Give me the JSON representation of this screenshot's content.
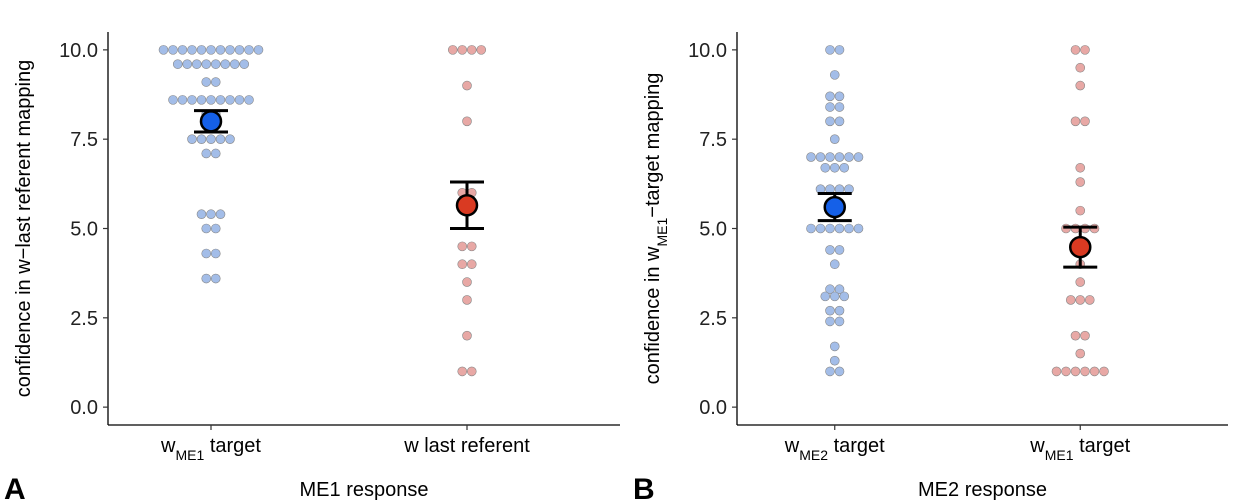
{
  "chart_data": [
    {
      "type": "dotplot",
      "panel": "A",
      "xlabel": "ME1 response",
      "ylabel": [
        "confidence in w−last referent mapping"
      ],
      "categories": [
        [
          "w",
          "ME1",
          " target"
        ],
        [
          "w last referent"
        ]
      ],
      "values": [
        [
          10,
          10,
          10,
          10,
          10,
          10,
          10,
          10,
          10,
          10,
          10,
          9.6,
          9.6,
          9.6,
          9.6,
          9.6,
          9.6,
          9.6,
          9.6,
          9.1,
          9.1,
          8.6,
          8.6,
          8.6,
          8.6,
          8.6,
          8.6,
          8.6,
          8.6,
          8.6,
          8.2,
          8.2,
          7.5,
          7.5,
          7.5,
          7.5,
          7.5,
          7.1,
          7.1,
          5.4,
          5.4,
          5.4,
          5.0,
          5.0,
          4.3,
          4.3,
          3.6,
          3.6
        ],
        [
          10,
          10,
          10,
          10,
          9,
          8,
          6,
          6,
          4.5,
          4.5,
          4,
          4,
          3.5,
          3,
          2,
          1,
          1
        ]
      ],
      "means": [
        8.0,
        5.65
      ],
      "errors": [
        0.3,
        0.65
      ],
      "point_colors": [
        "#a3bde8",
        "#e8a8a5"
      ],
      "mean_colors": [
        "#1560e8",
        "#d93a22"
      ],
      "ylim": [
        -0.5,
        10.5
      ],
      "yticks": [
        {
          "value": 0,
          "label": "0.0"
        },
        2.5,
        {
          "value": 5,
          "label": "5.0"
        },
        7.5,
        {
          "value": 10,
          "label": "10.0"
        }
      ]
    },
    {
      "type": "dotplot",
      "panel": "B",
      "xlabel": "ME2 response",
      "ylabel": [
        "confidence in w",
        "ME1",
        "−target mapping"
      ],
      "categories": [
        [
          "w",
          "ME2",
          " target"
        ],
        [
          "w",
          "ME1",
          " target"
        ]
      ],
      "values": [
        [
          10,
          10,
          9.3,
          8.7,
          8.7,
          8.4,
          8.4,
          8.0,
          8.0,
          7.5,
          7,
          7,
          7,
          7,
          7,
          7,
          6.7,
          6.7,
          6.7,
          6.1,
          6.1,
          6.1,
          6.1,
          5.0,
          5.0,
          5.0,
          5.0,
          5.0,
          5.0,
          4.4,
          4.4,
          4.0,
          3.3,
          3.3,
          3.1,
          3.1,
          3.1,
          2.7,
          2.7,
          2.4,
          2.4,
          1.7,
          1.3,
          1,
          1
        ],
        [
          10,
          10,
          9.5,
          9,
          8,
          8,
          6.7,
          6.3,
          5.5,
          5,
          5,
          5,
          5,
          4,
          3.5,
          3,
          3,
          3,
          2,
          2,
          1.5,
          1,
          1,
          1,
          1,
          1,
          1
        ]
      ],
      "means": [
        5.6,
        4.48
      ],
      "errors": [
        0.38,
        0.56
      ],
      "point_colors": [
        "#a3bde8",
        "#e8a8a5"
      ],
      "mean_colors": [
        "#1560e8",
        "#d93a22"
      ],
      "ylim": [
        -0.5,
        10.5
      ],
      "yticks": [
        {
          "value": 0,
          "label": "0.0"
        },
        2.5,
        {
          "value": 5,
          "label": "5.0"
        },
        7.5,
        {
          "value": 10,
          "label": "10.0"
        }
      ]
    }
  ]
}
